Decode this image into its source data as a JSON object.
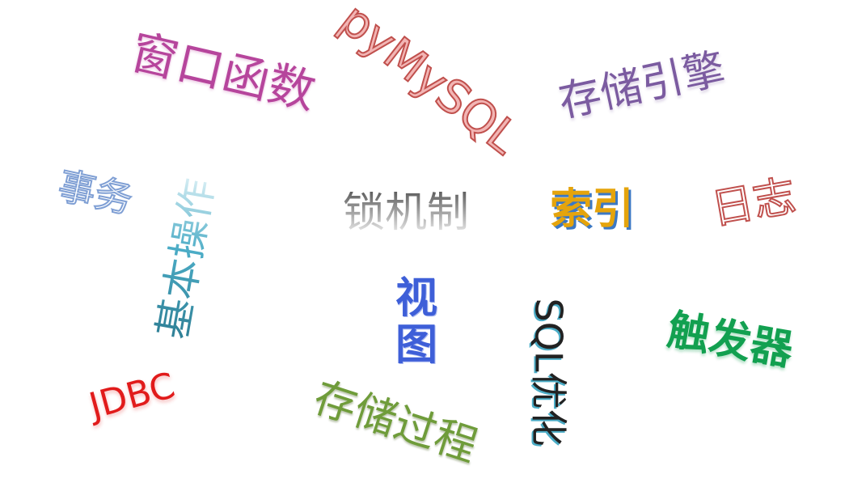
{
  "word_cloud": {
    "words": {
      "window_functions": "窗口函数",
      "pymysql": "pyMySQL",
      "storage_engine": "存储引擎",
      "transaction": "事务",
      "basic_operations": "基本操作",
      "lock_mechanism": "锁机制",
      "index": "索引",
      "log": "日志",
      "view": "视图",
      "sql_optimization": "SQL优化",
      "trigger": "触发器",
      "jdbc": "JDBC",
      "stored_procedure": "存储过程"
    },
    "colors": {
      "window_functions": "#b6459c",
      "pymysql": "#c0504d",
      "storage_engine": "#7b5ba0",
      "transaction": "#7f9fd4",
      "basic_operations": "#4bacc6",
      "lock_mechanism": "#a6a6a6",
      "index": "#e5a40c",
      "log": "#c0504d",
      "view": "#3e5fd8",
      "sql_optimization": "#222222",
      "trigger": "#12a050",
      "jdbc": "#e11b1b",
      "stored_procedure": "#6f9c3a"
    }
  }
}
